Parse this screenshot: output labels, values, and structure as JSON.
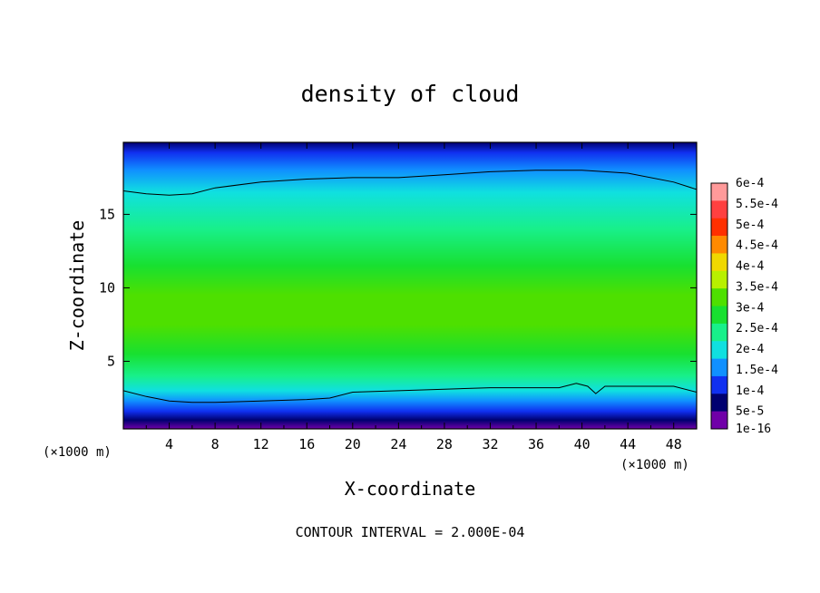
{
  "chart_data": {
    "type": "heatmap",
    "title": "density of cloud",
    "xlabel": "X-coordinate",
    "ylabel": "Z-coordinate",
    "x_unit": "(×1000 m)",
    "z_unit": "(×1000 m)",
    "x_ticks": [
      4,
      8,
      12,
      16,
      20,
      24,
      28,
      32,
      36,
      40,
      44,
      48
    ],
    "z_ticks": [
      5,
      10,
      15
    ],
    "xlim": [
      0,
      50
    ],
    "zlim": [
      0.4,
      19.9
    ],
    "contour_note": "CONTOUR INTERVAL = 2.000E-04",
    "colorbar": {
      "labels": [
        "6e-4",
        "5.5e-4",
        "5e-4",
        "4.5e-4",
        "4e-4",
        "3.5e-4",
        "3e-4",
        "2.5e-4",
        "2e-4",
        "1.5e-4",
        "1e-4",
        "5e-5",
        "1e-16"
      ],
      "colors": [
        "#ff9a9a",
        "#ff4040",
        "#ff3000",
        "#ff8a00",
        "#f0d800",
        "#b8f000",
        "#4ee000",
        "#18e030",
        "#18f08a",
        "#10e0e0",
        "#1090ff",
        "#1030f0",
        "#000070",
        "#7000a8"
      ]
    },
    "contour_lines": [
      {
        "level": "2e-4",
        "x": [
          0,
          2,
          4,
          6,
          8,
          12,
          16,
          20,
          24,
          28,
          32,
          36,
          40,
          44,
          48,
          50
        ],
        "z": [
          16.6,
          16.4,
          16.3,
          16.4,
          16.8,
          17.2,
          17.4,
          17.5,
          17.5,
          17.7,
          17.9,
          18.0,
          18.0,
          17.8,
          17.2,
          16.7
        ]
      },
      {
        "level": "2e-4",
        "x": [
          0,
          2,
          4,
          6,
          8,
          12,
          16,
          18,
          20,
          24,
          28,
          32,
          36,
          38,
          39.5,
          40.5,
          41.2,
          42,
          44,
          48,
          50
        ],
        "z": [
          3.0,
          2.6,
          2.3,
          2.2,
          2.2,
          2.3,
          2.4,
          2.5,
          2.9,
          3.0,
          3.1,
          3.2,
          3.2,
          3.2,
          3.5,
          3.3,
          2.8,
          3.3,
          3.3,
          3.3,
          2.9
        ]
      }
    ],
    "field_bands": [
      {
        "z": 0.4,
        "value": "1e-16"
      },
      {
        "z": 1.0,
        "value": "5e-5"
      },
      {
        "z": 1.6,
        "value": "1e-4"
      },
      {
        "z": 2.3,
        "value": "1.5e-4"
      },
      {
        "z": 3.0,
        "value": "2e-4"
      },
      {
        "z": 4.0,
        "value": "2.5e-4"
      },
      {
        "z": 5.5,
        "value": "3e-4"
      },
      {
        "z": 7.5,
        "value": "3.5e-4"
      },
      {
        "z": 9.5,
        "value": "3.5e-4"
      },
      {
        "z": 11.5,
        "value": "3e-4"
      },
      {
        "z": 14.0,
        "value": "2.5e-4"
      },
      {
        "z": 16.5,
        "value": "2e-4"
      },
      {
        "z": 18.0,
        "value": "1.5e-4"
      },
      {
        "z": 19.2,
        "value": "1e-4"
      },
      {
        "z": 19.9,
        "value": "5e-5"
      }
    ]
  }
}
